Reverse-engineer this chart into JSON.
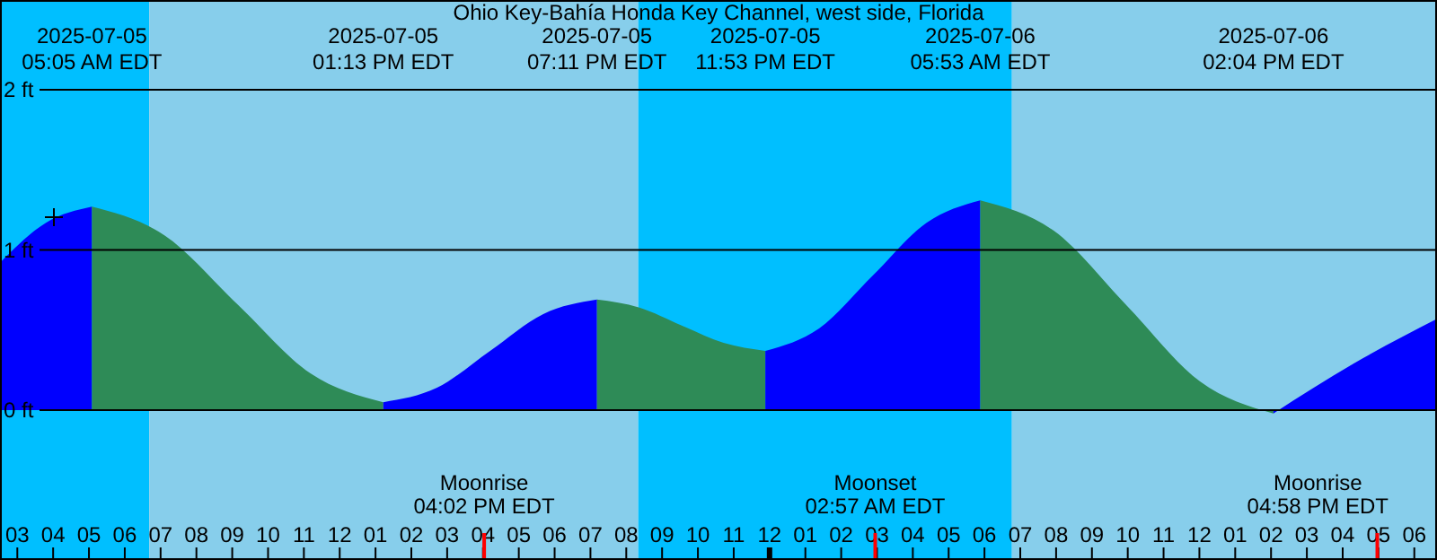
{
  "chart_data": {
    "type": "area",
    "title": "Ohio Key-Bahía Honda Key Channel, west side, Florida",
    "x": [
      "2025-07-05T02:31",
      "2025-07-05T03:48",
      "2025-07-05T05:05",
      "2025-07-05T07:07",
      "2025-07-05T09:09",
      "2025-07-05T11:11",
      "2025-07-05T13:13",
      "2025-07-05T14:43",
      "2025-07-05T16:12",
      "2025-07-05T17:41",
      "2025-07-05T19:11",
      "2025-07-05T20:22",
      "2025-07-05T21:32",
      "2025-07-05T22:43",
      "2025-07-05T23:53",
      "2025-07-06T01:23",
      "2025-07-06T02:53",
      "2025-07-06T04:23",
      "2025-07-06T05:53",
      "2025-07-06T07:56",
      "2025-07-06T09:59",
      "2025-07-06T12:01",
      "2025-07-06T14:04",
      "2025-07-06T16:18",
      "2025-07-06T18:38"
    ],
    "series": [
      {
        "color": "#0000ff",
        "values": [
          0.92,
          1.17,
          1.27,
          null,
          null,
          null,
          null,
          null,
          null,
          null,
          null,
          null,
          null,
          null,
          null,
          null,
          null,
          null,
          null,
          null,
          null,
          null,
          null,
          null,
          null
        ]
      },
      {
        "color": "#2e8b57",
        "values": [
          null,
          null,
          1.27,
          1.09,
          0.66,
          0.23,
          0.05,
          null,
          null,
          null,
          null,
          null,
          null,
          null,
          null,
          null,
          null,
          null,
          null,
          null,
          null,
          null,
          null,
          null,
          null
        ]
      },
      {
        "color": "#0000ff",
        "values": [
          null,
          null,
          null,
          null,
          null,
          null,
          0.05,
          0.14,
          0.37,
          0.6,
          0.69,
          null,
          null,
          null,
          null,
          null,
          null,
          null,
          null,
          null,
          null,
          null,
          null,
          null,
          null
        ]
      },
      {
        "color": "#2e8b57",
        "values": [
          null,
          null,
          null,
          null,
          null,
          null,
          null,
          null,
          null,
          null,
          0.69,
          0.64,
          0.53,
          0.42,
          0.37,
          null,
          null,
          null,
          null,
          null,
          null,
          null,
          null,
          null,
          null
        ]
      },
      {
        "color": "#0000ff",
        "values": [
          null,
          null,
          null,
          null,
          null,
          null,
          null,
          null,
          null,
          null,
          null,
          null,
          null,
          null,
          0.37,
          0.51,
          0.84,
          1.17,
          1.31,
          null,
          null,
          null,
          null,
          null,
          null
        ]
      },
      {
        "color": "#2e8b57",
        "values": [
          null,
          null,
          null,
          null,
          null,
          null,
          null,
          null,
          null,
          null,
          null,
          null,
          null,
          null,
          null,
          null,
          null,
          null,
          1.31,
          1.12,
          0.65,
          0.18,
          -0.02,
          null,
          null
        ]
      },
      {
        "color": "#0000ff",
        "values": [
          null,
          null,
          null,
          null,
          null,
          null,
          null,
          null,
          null,
          null,
          null,
          null,
          null,
          null,
          null,
          null,
          null,
          null,
          null,
          null,
          null,
          null,
          -0.02,
          0.29,
          0.57
        ]
      }
    ],
    "xlim": [
      "2025-07-05T02:31",
      "2025-07-06T18:38"
    ],
    "xticks": [
      {
        "value": "2025-07-05T03:00",
        "label": "03"
      },
      {
        "value": "2025-07-05T04:00",
        "label": "04"
      },
      {
        "value": "2025-07-05T05:00",
        "label": "05"
      },
      {
        "value": "2025-07-05T06:00",
        "label": "06"
      },
      {
        "value": "2025-07-05T07:00",
        "label": "07"
      },
      {
        "value": "2025-07-05T08:00",
        "label": "08"
      },
      {
        "value": "2025-07-05T09:00",
        "label": "09"
      },
      {
        "value": "2025-07-05T10:00",
        "label": "10"
      },
      {
        "value": "2025-07-05T11:00",
        "label": "11"
      },
      {
        "value": "2025-07-05T12:00",
        "label": "12"
      },
      {
        "value": "2025-07-05T13:00",
        "label": "01"
      },
      {
        "value": "2025-07-05T14:00",
        "label": "02"
      },
      {
        "value": "2025-07-05T15:00",
        "label": "03"
      },
      {
        "value": "2025-07-05T16:00",
        "label": "04"
      },
      {
        "value": "2025-07-05T17:00",
        "label": "05"
      },
      {
        "value": "2025-07-05T18:00",
        "label": "06"
      },
      {
        "value": "2025-07-05T19:00",
        "label": "07"
      },
      {
        "value": "2025-07-05T20:00",
        "label": "08"
      },
      {
        "value": "2025-07-05T21:00",
        "label": "09"
      },
      {
        "value": "2025-07-05T22:00",
        "label": "10"
      },
      {
        "value": "2025-07-05T23:00",
        "label": "11"
      },
      {
        "value": "2025-07-06T00:00",
        "label": "12"
      },
      {
        "value": "2025-07-06T01:00",
        "label": "01"
      },
      {
        "value": "2025-07-06T02:00",
        "label": "02"
      },
      {
        "value": "2025-07-06T03:00",
        "label": "03"
      },
      {
        "value": "2025-07-06T04:00",
        "label": "04"
      },
      {
        "value": "2025-07-06T05:00",
        "label": "05"
      },
      {
        "value": "2025-07-06T06:00",
        "label": "06"
      },
      {
        "value": "2025-07-06T07:00",
        "label": "07"
      },
      {
        "value": "2025-07-06T08:00",
        "label": "08"
      },
      {
        "value": "2025-07-06T09:00",
        "label": "09"
      },
      {
        "value": "2025-07-06T10:00",
        "label": "10"
      },
      {
        "value": "2025-07-06T11:00",
        "label": "11"
      },
      {
        "value": "2025-07-06T12:00",
        "label": "12"
      },
      {
        "value": "2025-07-06T13:00",
        "label": "01"
      },
      {
        "value": "2025-07-06T14:00",
        "label": "02"
      },
      {
        "value": "2025-07-06T15:00",
        "label": "03"
      },
      {
        "value": "2025-07-06T16:00",
        "label": "04"
      },
      {
        "value": "2025-07-06T17:00",
        "label": "05"
      },
      {
        "value": "2025-07-06T18:00",
        "label": "06"
      }
    ],
    "x2lim": [
      "2025-07-05T02:31",
      "2025-07-06T18:38"
    ],
    "x2ticks": [
      {
        "value": "2025-07-05T05:05",
        "label": "2025-07-05\n05:05 AM EDT"
      },
      {
        "value": "2025-07-05T13:13",
        "label": "2025-07-05\n01:13 PM EDT"
      },
      {
        "value": "2025-07-05T19:11",
        "label": "2025-07-05\n07:11 PM EDT"
      },
      {
        "value": "2025-07-05T23:53",
        "label": "2025-07-05\n11:53 PM EDT"
      },
      {
        "value": "2025-07-06T05:53",
        "label": "2025-07-06\n05:53 AM EDT"
      },
      {
        "value": "2025-07-06T14:04",
        "label": "2025-07-06\n02:04 PM EDT"
      }
    ],
    "ylim": [
      -0.935,
      2.56
    ],
    "yticks": [
      {
        "value": 0,
        "label": "0 ft"
      },
      {
        "value": 1,
        "label": "1 ft"
      },
      {
        "value": 2,
        "label": "2 ft"
      }
    ],
    "grid": "y",
    "bands": [
      {
        "axis": "x",
        "from": "2025-07-05T02:31",
        "to": "2025-07-05T06:41",
        "color": "#00bfff"
      },
      {
        "axis": "x",
        "from": "2025-07-05T06:41",
        "to": "2025-07-05T20:20",
        "color": "#87ceeb"
      },
      {
        "axis": "x",
        "from": "2025-07-05T20:20",
        "to": "2025-07-06T06:46",
        "color": "#00bfff"
      },
      {
        "axis": "x",
        "from": "2025-07-06T06:46",
        "to": "2025-07-06T18:38",
        "color": "#87ceeb"
      }
    ],
    "ref_lines": [
      {
        "axis": "x",
        "value": "2025-07-05T16:02",
        "label": "Moonrise\n04:02 PM EDT",
        "color": "#ff0000"
      },
      {
        "axis": "x",
        "value": "2025-07-06T02:57",
        "label": "Moonset\n02:57 AM EDT",
        "color": "#ff0000"
      },
      {
        "axis": "x",
        "value": "2025-07-06T16:58",
        "label": "Moonrise\n04:58 PM EDT",
        "color": "#ff0000"
      }
    ]
  }
}
